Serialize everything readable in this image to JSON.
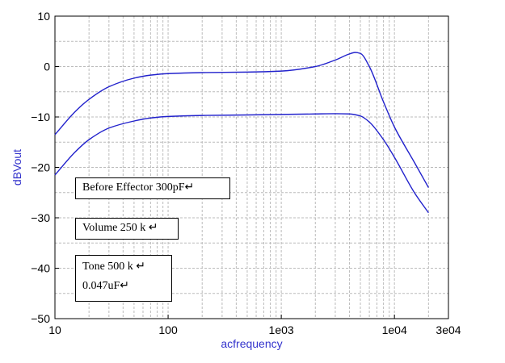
{
  "chart_data": {
    "type": "line",
    "xlabel": "acfrequency",
    "ylabel": "dBVout",
    "xscale": "log",
    "xlim": [
      10,
      30000
    ],
    "ylim": [
      -50,
      10
    ],
    "grid": true,
    "x_ticks": [
      {
        "value": 10,
        "label": "10"
      },
      {
        "value": 100,
        "label": "100"
      },
      {
        "value": 1000,
        "label": "1e03"
      },
      {
        "value": 10000,
        "label": "1e04"
      },
      {
        "value": 30000,
        "label": "3e04"
      }
    ],
    "y_ticks": [
      {
        "value": 10,
        "label": "10"
      },
      {
        "value": 0,
        "label": "0"
      },
      {
        "value": -10,
        "label": "−10"
      },
      {
        "value": -20,
        "label": "−20"
      },
      {
        "value": -30,
        "label": "−30"
      },
      {
        "value": -40,
        "label": "−40"
      },
      {
        "value": -50,
        "label": "−50"
      }
    ],
    "series": [
      {
        "color": "#2222cc",
        "x": [
          10,
          15,
          20,
          30,
          50,
          70,
          100,
          200,
          500,
          1000,
          2000,
          3000,
          4000,
          4500,
          5000,
          6000,
          8000,
          10000,
          15000,
          20000
        ],
        "y": [
          -13.5,
          -9,
          -6.5,
          -4,
          -2.3,
          -1.7,
          -1.4,
          -1.2,
          -1.1,
          -0.9,
          0,
          1.3,
          2.5,
          2.8,
          2.6,
          0,
          -7,
          -12,
          -19,
          -24
        ]
      },
      {
        "color": "#2222cc",
        "x": [
          10,
          15,
          20,
          30,
          50,
          70,
          100,
          200,
          500,
          1000,
          2000,
          3000,
          4000,
          5000,
          6000,
          8000,
          10000,
          15000,
          20000
        ],
        "y": [
          -21.5,
          -17,
          -14.5,
          -12.2,
          -10.8,
          -10.2,
          -9.9,
          -9.7,
          -9.6,
          -9.5,
          -9.4,
          -9.35,
          -9.4,
          -9.8,
          -11,
          -14.5,
          -18,
          -25,
          -29
        ]
      }
    ],
    "annotations": [
      {
        "lines": [
          "Before Effector 300pF↵"
        ]
      },
      {
        "lines": [
          "Volume 250 k ↵"
        ]
      },
      {
        "lines": [
          "Tone 500 k ↵",
          "0.047uF↵"
        ]
      }
    ]
  }
}
